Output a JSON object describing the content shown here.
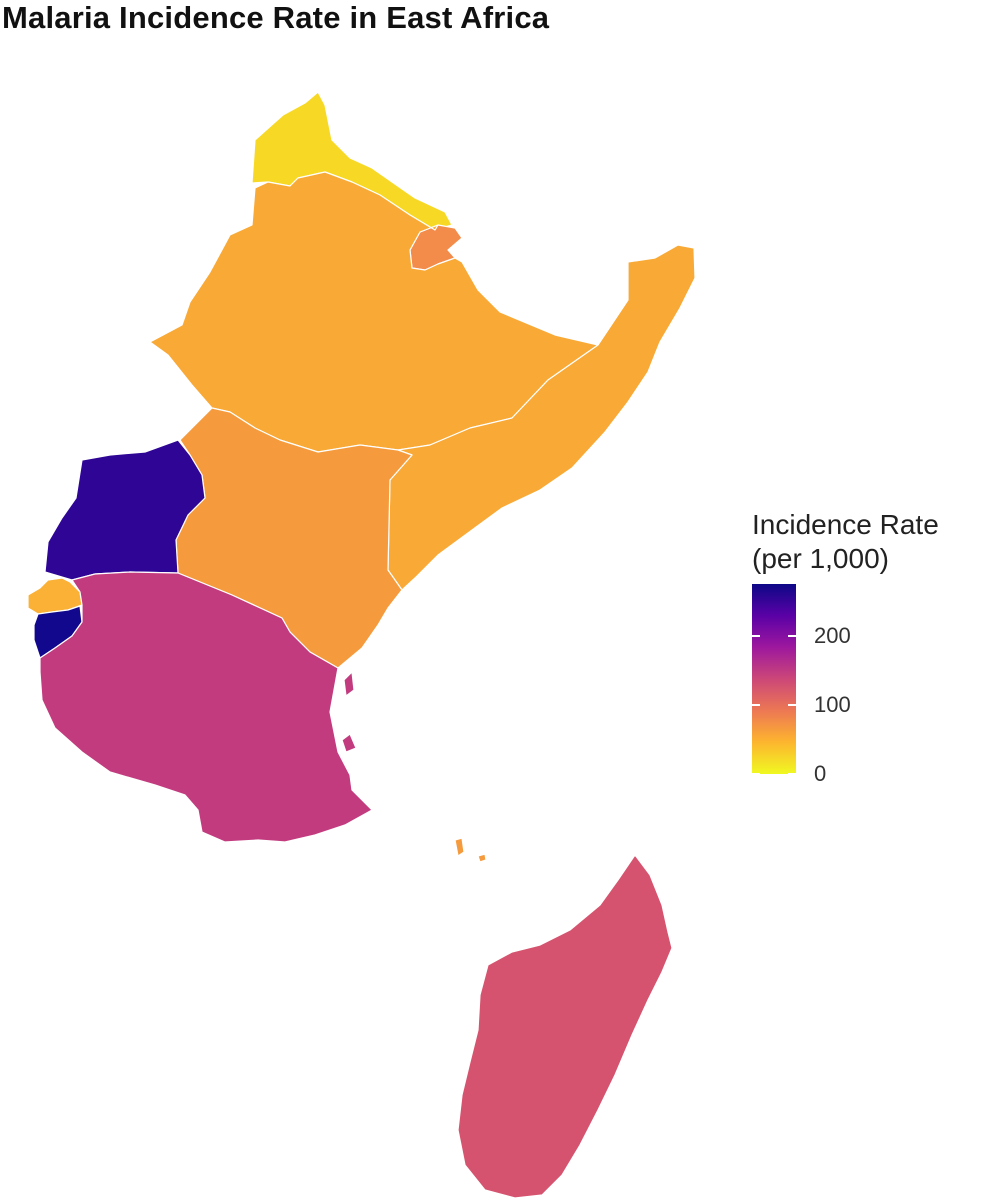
{
  "title": "Malaria Incidence Rate in East Africa",
  "legend": {
    "title_line1": "Incidence Rate",
    "title_line2": "(per 1,000)",
    "ticks": [
      {
        "value": 200,
        "label": "200"
      },
      {
        "value": 100,
        "label": "100"
      },
      {
        "value": 0,
        "label": "0"
      }
    ],
    "range": [
      0,
      275
    ],
    "palette": [
      "#f0f921",
      "#fdb42f",
      "#ed7953",
      "#cc4778",
      "#9c179e",
      "#5c01a6",
      "#0d0887"
    ]
  },
  "chart_data": {
    "type": "choropleth",
    "value_label": "Incidence Rate (per 1,000)",
    "regions": [
      {
        "region": "Eritrea",
        "value": 3,
        "color": "#f7d925"
      },
      {
        "region": "Djibouti",
        "value": 70,
        "color": "#f38b4b"
      },
      {
        "region": "Ethiopia",
        "value": 45,
        "color": "#f9a935"
      },
      {
        "region": "Somalia",
        "value": 45,
        "color": "#f9a935"
      },
      {
        "region": "Kenya",
        "value": 55,
        "color": "#f59b3d"
      },
      {
        "region": "Uganda",
        "value": 250,
        "color": "#2e0595"
      },
      {
        "region": "Rwanda",
        "value": 45,
        "color": "#fbb036"
      },
      {
        "region": "Burundi",
        "value": 270,
        "color": "#12088e"
      },
      {
        "region": "Tanzania",
        "value": 135,
        "color": "#c23b7f"
      },
      {
        "region": "Madagascar",
        "value": 115,
        "color": "#d5536e"
      },
      {
        "region": "Comoros",
        "value": 55,
        "color": "#f59b3d"
      }
    ]
  }
}
